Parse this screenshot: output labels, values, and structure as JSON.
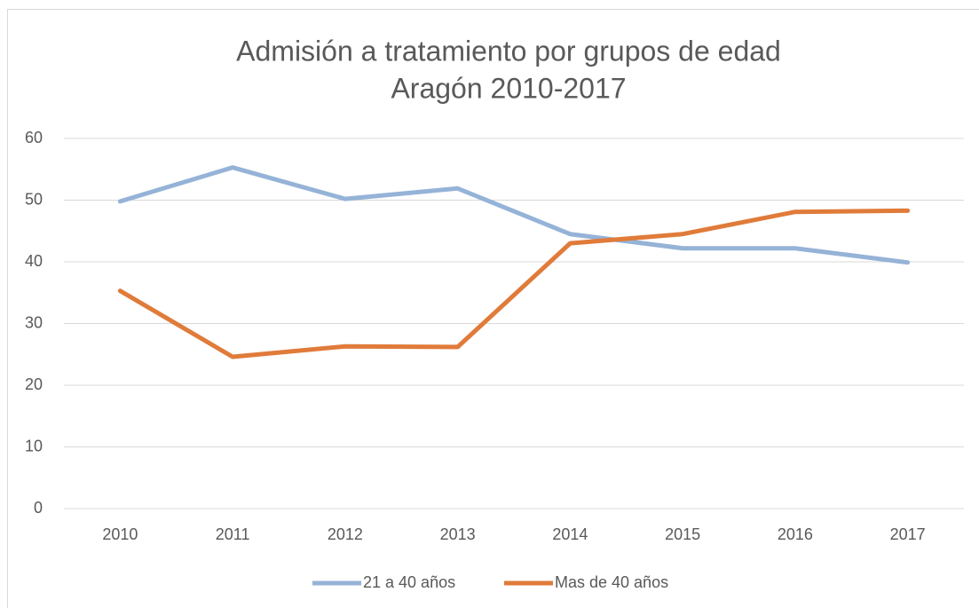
{
  "chart_data": {
    "type": "line",
    "title": [
      "Admisión a tratamiento por grupos de edad",
      "Aragón 2010-2017"
    ],
    "categories": [
      "2010",
      "2011",
      "2012",
      "2013",
      "2014",
      "2015",
      "2016",
      "2017"
    ],
    "series": [
      {
        "name": "21 a 40 años",
        "color": "#95b3d7",
        "values": [
          49.8,
          55.3,
          50.2,
          51.9,
          44.5,
          42.2,
          42.2,
          39.9
        ]
      },
      {
        "name": "Mas de 40 años",
        "color": "#e07b3a",
        "values": [
          35.3,
          24.6,
          26.3,
          26.2,
          43.0,
          44.5,
          48.1,
          48.3
        ]
      }
    ],
    "ylim": [
      0,
      60
    ],
    "yticks": [
      0,
      10,
      20,
      30,
      40,
      50,
      60
    ],
    "grid": true,
    "legend": "bottom"
  }
}
